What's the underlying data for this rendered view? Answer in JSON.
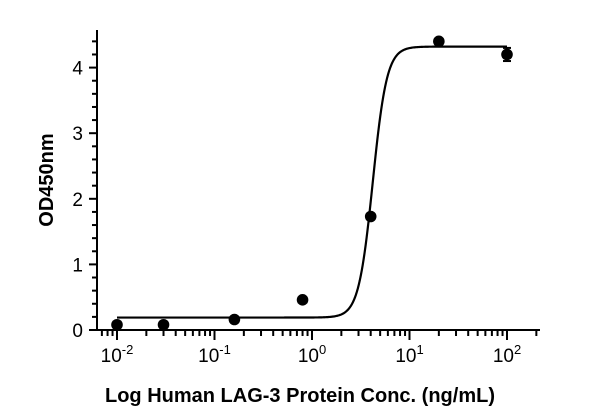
{
  "chart_data": {
    "type": "scatter",
    "xlabel": "Log  Human LAG-3 Protein Conc. (ng/mL)",
    "ylabel": "OD450nm",
    "x_scale": "log",
    "xlim": [
      0.008,
      150
    ],
    "ylim": [
      0,
      4.55
    ],
    "grid": false,
    "x_ticks": [
      {
        "value": 0.01,
        "base": "10",
        "exp": "-2"
      },
      {
        "value": 0.1,
        "base": "10",
        "exp": "-1"
      },
      {
        "value": 1,
        "base": "10",
        "exp": "0"
      },
      {
        "value": 10,
        "base": "10",
        "exp": "1"
      },
      {
        "value": 100,
        "base": "10",
        "exp": "2"
      }
    ],
    "y_ticks": [
      0,
      1,
      2,
      3,
      4
    ],
    "series": [
      {
        "points": [
          {
            "x": 0.01,
            "y": 0.08
          },
          {
            "x": 0.03,
            "y": 0.08
          },
          {
            "x": 0.16,
            "y": 0.16
          },
          {
            "x": 0.8,
            "y": 0.46
          },
          {
            "x": 4.0,
            "y": 1.73
          },
          {
            "x": 20,
            "y": 4.4
          },
          {
            "x": 100,
            "y": 4.2,
            "error": 0.1
          }
        ],
        "fit": {
          "model": "4PL",
          "bottom": 0.19,
          "top": 4.32,
          "ec50": 4.2,
          "hill": 6
        }
      }
    ]
  }
}
